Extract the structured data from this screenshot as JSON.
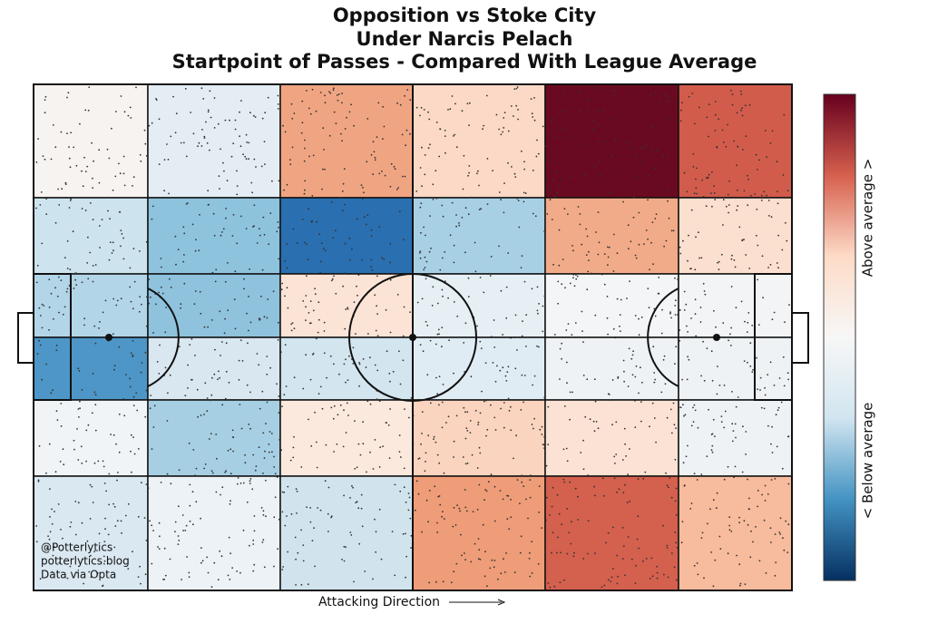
{
  "chart_data": {
    "type": "heatmap",
    "title": [
      "Opposition vs Stoke City",
      "Under Narcis Pelach",
      "Startpoint of Passes - Compared With League Average"
    ],
    "colors": [
      [
        "#f7f3f0",
        "#e4edf3",
        "#f0a582",
        "#fbd9c6",
        "#6a0a20",
        "#d25c4c"
      ],
      [
        "#cde3ee",
        "#8ec3de",
        "#2a6fb0",
        "#a8d0e4",
        "#f2ab88",
        "#fbdfcf"
      ],
      [
        "#b2d5e8",
        "#8fc2dd",
        "#fbe3d6",
        "#e6eff4",
        "#f4f5f6",
        "#f2f4f6"
      ],
      [
        "#4d96c7",
        "#d9e7f0",
        "#d3e5ef",
        "#e0ecf3",
        "#eef2f5",
        "#eef2f5"
      ],
      [
        "#f0f4f6",
        "#a6cfe3",
        "#fbe9de",
        "#fad4bf",
        "#fbe2d4",
        "#eef2f5"
      ],
      [
        "#dae8f1",
        "#edf2f6",
        "#d1e4ee",
        "#ee9d78",
        "#d4604e",
        "#f7bb9d"
      ]
    ],
    "colorbar": {
      "colors": [
        "#67001f",
        "#d6604d",
        "#fddbc7",
        "#f7f7f7",
        "#d1e5f0",
        "#4393c3",
        "#053061"
      ],
      "above_label": "Above average >",
      "below_label": "< Below average"
    },
    "x_label": "Attacking Direction",
    "credits": [
      "@Potterlytics",
      "potterlytics.blog",
      "Data via Opta"
    ]
  }
}
